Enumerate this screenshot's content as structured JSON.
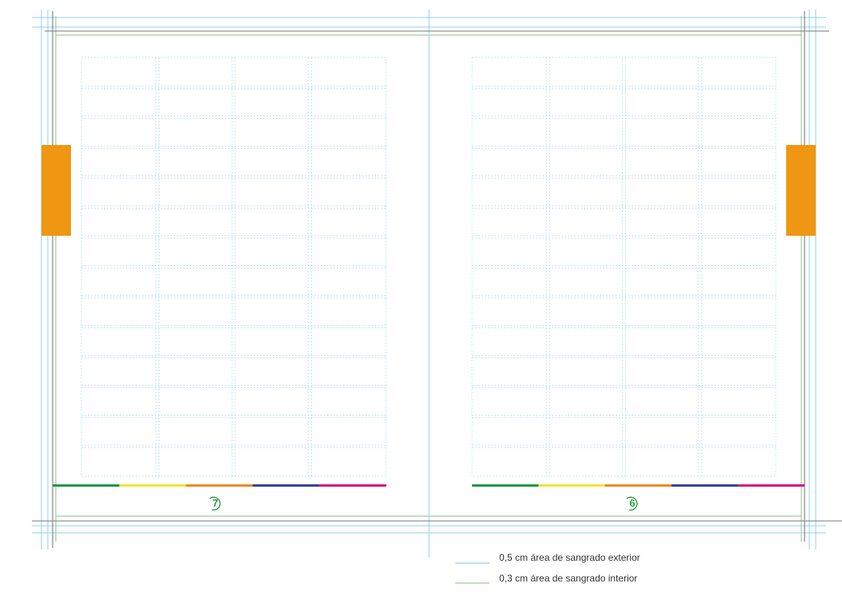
{
  "colors": {
    "bleed_exterior": "#8fd0ea",
    "bleed_interior": "#9ccf9c",
    "trim": "#7a7a7a",
    "grid": "#c9e4ec",
    "tab": "#ef9612",
    "page_number": "#2e9a44",
    "color_bar": [
      "#1c9a46",
      "#f4e436",
      "#ef8a25",
      "#33479a",
      "#d4177f"
    ]
  },
  "pages": [
    {
      "number": "7",
      "tab_side": "left",
      "grid_columns": 4,
      "grid_rows": 14
    },
    {
      "number": "6",
      "tab_side": "right",
      "grid_columns": 4,
      "grid_rows": 14
    }
  ],
  "legend": [
    {
      "label": "0,5 cm área de sangrado exterior",
      "swatch": "#8fd0ea"
    },
    {
      "label": "0,3 cm área de sangrado interior",
      "swatch": "#9ccf9c"
    }
  ]
}
